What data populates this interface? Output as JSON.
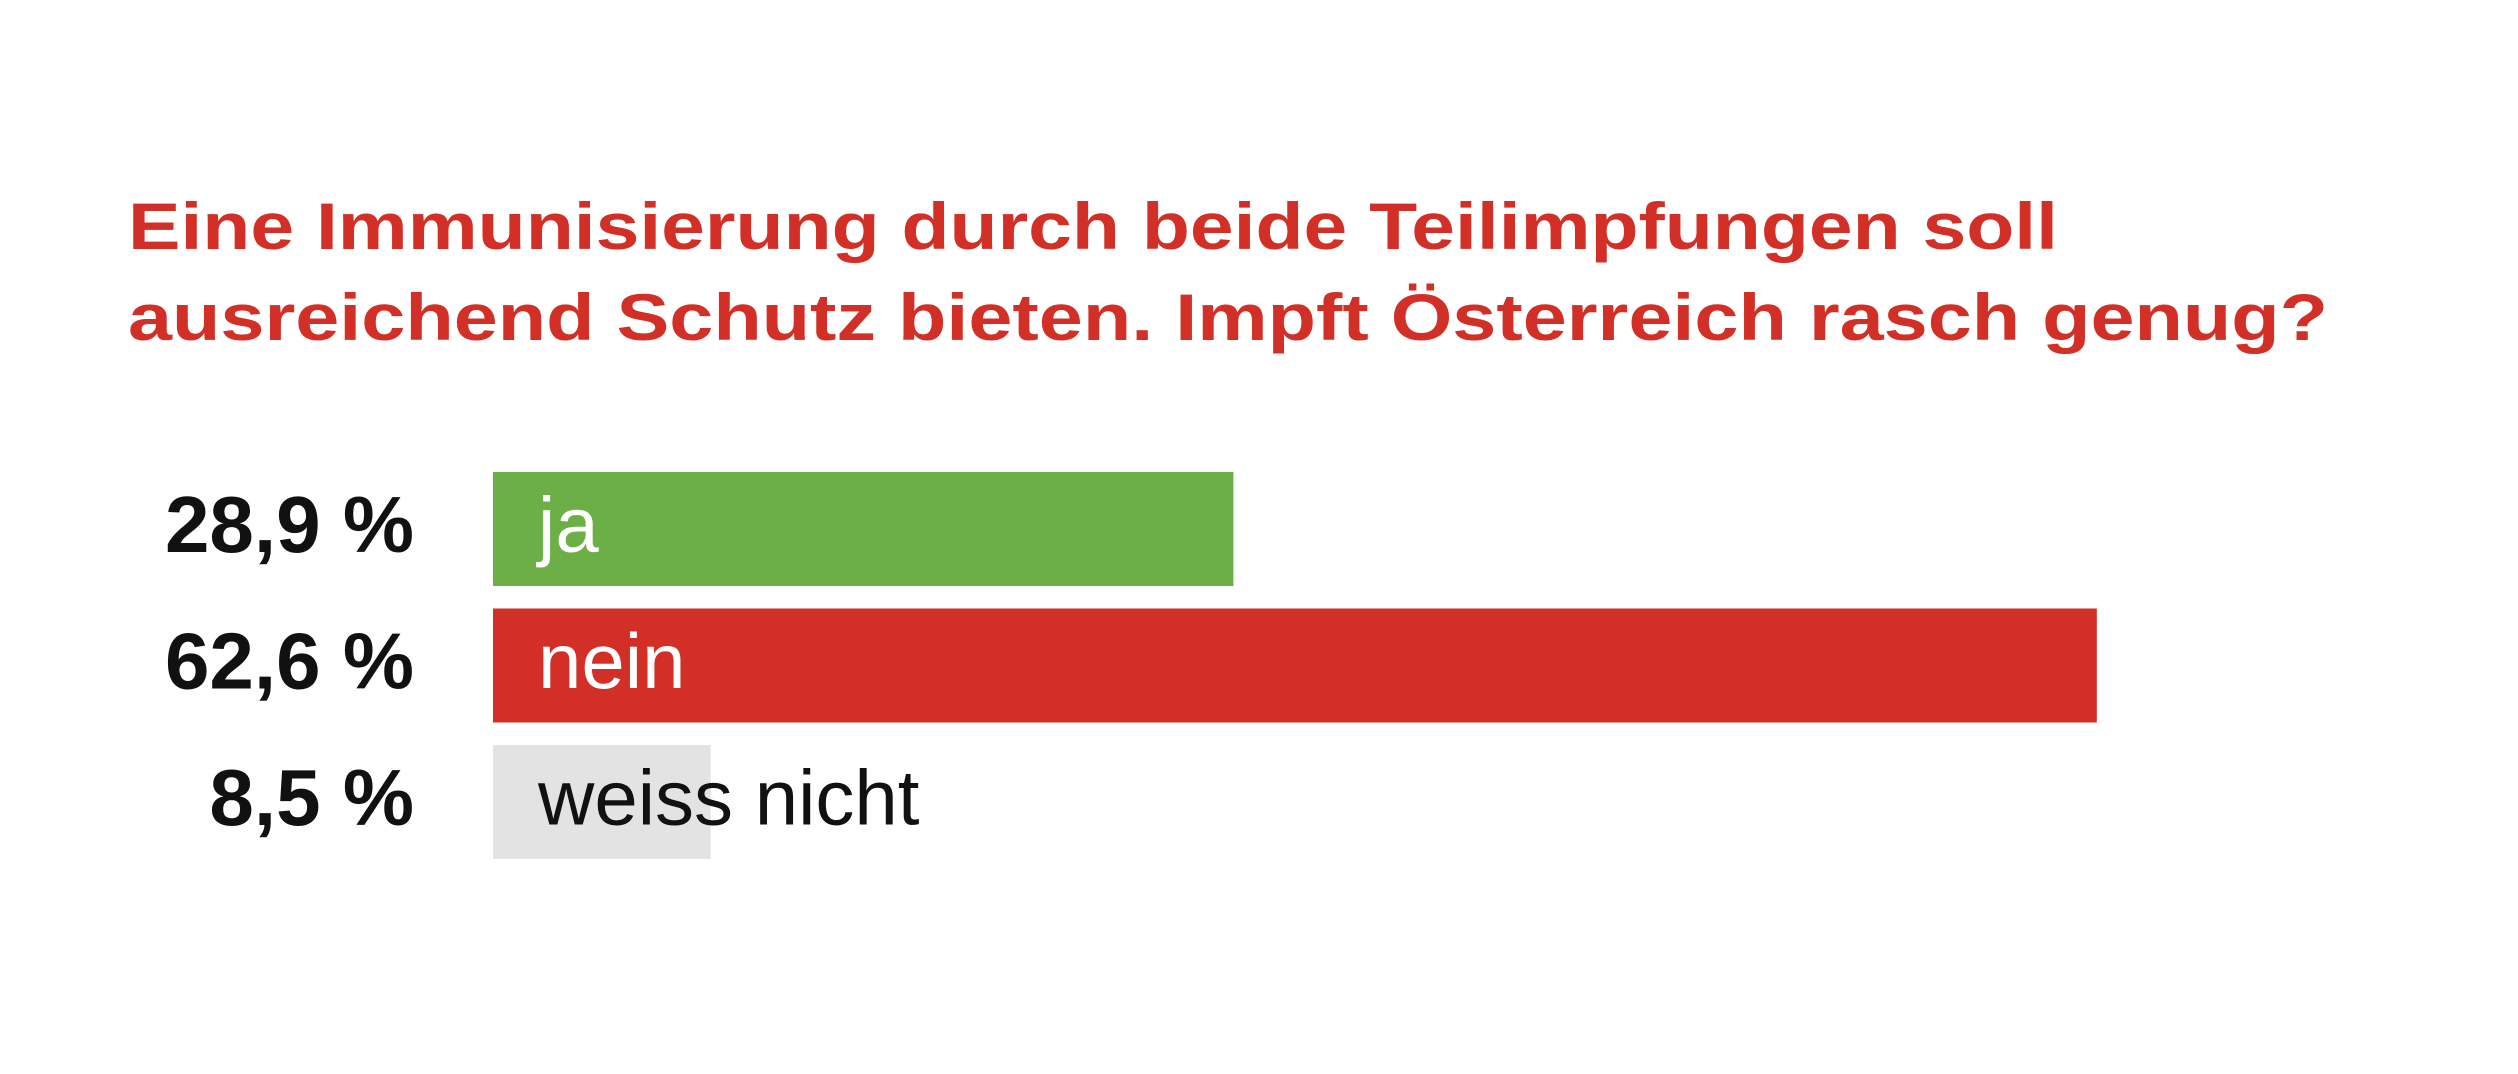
{
  "chart_data": {
    "type": "bar",
    "orientation": "horizontal",
    "title": [
      "Eine Immunisierung durch beide Teilimpfungen soll",
      "ausreichend Schutz bieten. Impft Österreich rasch genug?"
    ],
    "categories": [
      "ja",
      "nein",
      "weiss nicht"
    ],
    "values": [
      28.9,
      62.6,
      8.5
    ],
    "value_labels": [
      "28,9 %",
      "62,6 %",
      "8,5 %"
    ],
    "colors": [
      "#6daf47",
      "#d22f27",
      "#e3e3e3"
    ],
    "label_colors": [
      "#ffffff",
      "#ffffff",
      "#111111"
    ]
  }
}
